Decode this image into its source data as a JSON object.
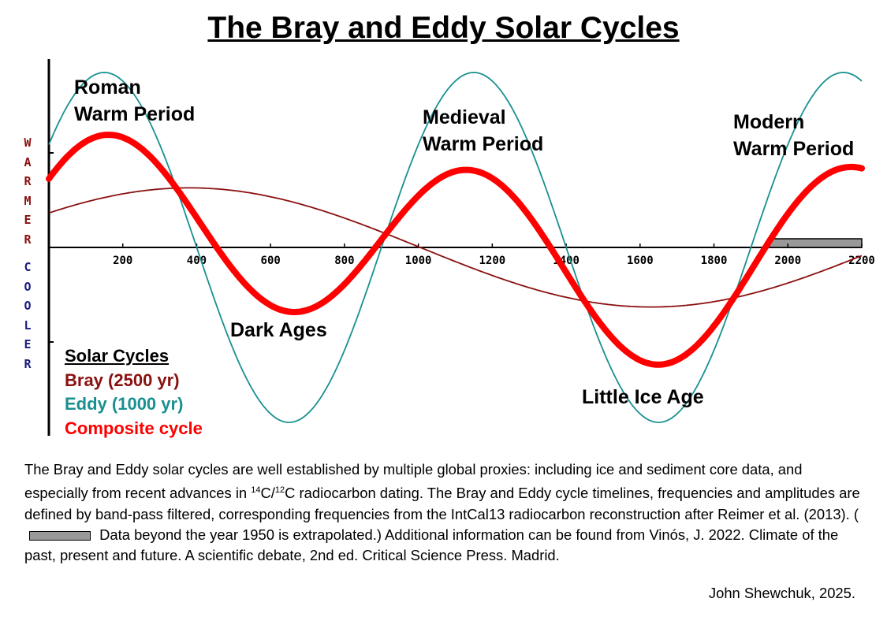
{
  "chart_data": {
    "type": "line",
    "title": "The Bray and Eddy Solar Cycles",
    "xlim": [
      0,
      2200
    ],
    "ylim": [
      -2,
      2
    ],
    "x_ticks": [
      200,
      400,
      600,
      800,
      1000,
      1200,
      1400,
      1600,
      1800,
      2000,
      2200
    ],
    "y_ticks": [
      -1,
      1
    ],
    "ylabel_top": "WARMER",
    "ylabel_bottom": "COOLER",
    "grid": false,
    "legend_placement": "bottom-left",
    "legend_title": "Solar Cycles",
    "series": [
      {
        "name": "Bray  (2500 yr)",
        "period": 2500,
        "peak_year": 380,
        "amplitude": 0.63,
        "color": "#8b1010"
      },
      {
        "name": "Eddy (1000 yr)",
        "period": 1000,
        "peak_year": 150,
        "amplitude": 1.85,
        "color": "#1a9090"
      },
      {
        "name": "Composite cycle",
        "composition": "mean of Bray and Eddy",
        "color": "#ff0000"
      }
    ],
    "extrapolated_range": [
      1950,
      2200
    ],
    "extrapolated_color": "#999999",
    "annotations": [
      {
        "text": "Roman\nWarm Period"
      },
      {
        "text": "Medieval\nWarm Period"
      },
      {
        "text": "Modern\nWarm Period"
      },
      {
        "text": "Dark Ages"
      },
      {
        "text": "Little Ice Age"
      }
    ]
  },
  "caption": {
    "part1": "The Bray and Eddy solar cycles are well established by multiple global proxies: including ice and sediment core data, and especially from recent advances in ",
    "sup1": "14",
    "mid": "C/",
    "sup2": "12",
    "part2": "C radiocarbon dating.  The Bray and Eddy cycle timelines, frequencies and amplitudes are defined by band-pass filtered, corresponding frequencies from the IntCal13 radiocarbon reconstruction after Reimer et al. (2013).  (",
    "part3": " Data beyond the year 1950 is extrapolated.)  Additional information can be found from Vinós, J. 2022. Climate of the past, present and future. A scientific debate, 2nd ed. Critical Science Press. Madrid."
  },
  "credit": "John Shewchuk, 2025."
}
